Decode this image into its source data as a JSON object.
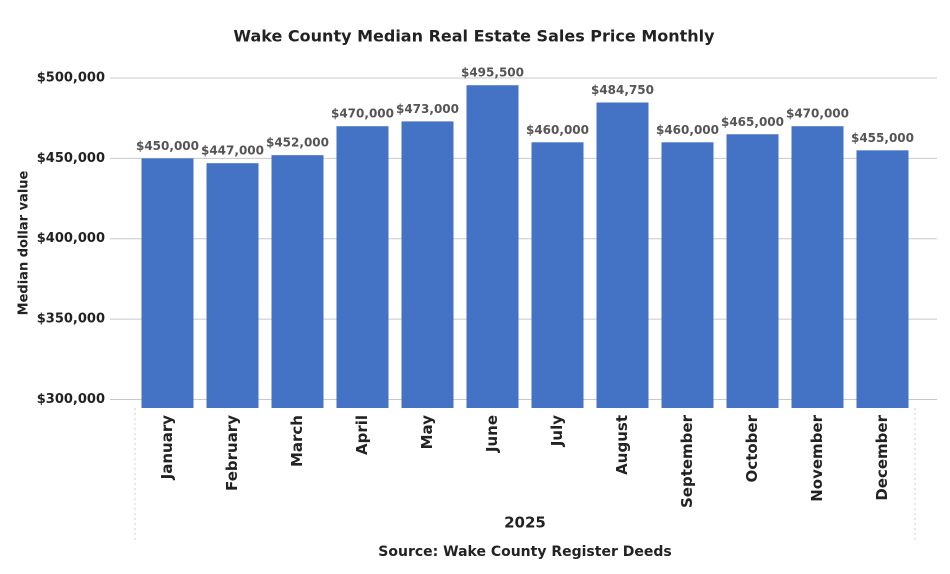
{
  "chart_data": {
    "type": "bar",
    "title": "Wake County Median Real Estate Sales Price Monthly",
    "x_label": "2025",
    "y_label": "Median dollar value",
    "source": "Source: Wake County Register Deeds",
    "categories": [
      "January",
      "February",
      "March",
      "April",
      "May",
      "June",
      "July",
      "August",
      "September",
      "October",
      "November",
      "December"
    ],
    "values": [
      450000,
      447000,
      452000,
      470000,
      473000,
      495500,
      460000,
      484750,
      460000,
      465000,
      470000,
      455000
    ],
    "value_labels": [
      "$450,000",
      "$447,000",
      "$452,000",
      "$470,000",
      "$473,000",
      "$495,500",
      "$460,000",
      "$484,750",
      "$460,000",
      "$465,000",
      "$470,000",
      "$455,000"
    ],
    "color": "#4472c4",
    "ylim": [
      294700,
      500000
    ],
    "yticks": [
      {
        "value": 300000,
        "label": "$300,000"
      },
      {
        "value": 350000,
        "label": "$350,000"
      },
      {
        "value": 400000,
        "label": "$400,000"
      },
      {
        "value": 450000,
        "label": "$450,000"
      },
      {
        "value": 500000,
        "label": "$500,000"
      }
    ],
    "grid": true
  }
}
